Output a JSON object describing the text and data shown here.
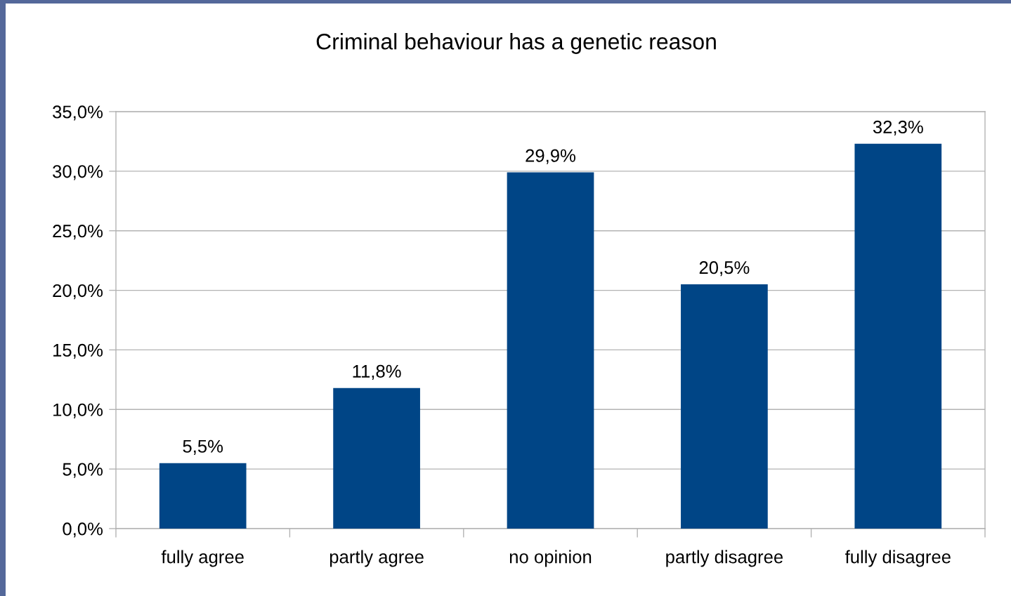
{
  "chart_data": {
    "type": "bar",
    "title": "Criminal behaviour has a genetic reason",
    "categories": [
      "fully agree",
      "partly agree",
      "no opinion",
      "partly disagree",
      "fully disagree"
    ],
    "values": [
      5.5,
      11.8,
      29.9,
      20.5,
      32.3
    ],
    "value_labels": [
      "5,5%",
      "11,8%",
      "29,9%",
      "20,5%",
      "32,3%"
    ],
    "color": "#004586",
    "ylim": [
      0,
      35
    ],
    "yticks": [
      {
        "value": 0,
        "label": "0,0%"
      },
      {
        "value": 5,
        "label": "5,0%"
      },
      {
        "value": 10,
        "label": "10,0%"
      },
      {
        "value": 15,
        "label": "15,0%"
      },
      {
        "value": 20,
        "label": "20,0%"
      },
      {
        "value": 25,
        "label": "25,0%"
      },
      {
        "value": 30,
        "label": "30,0%"
      },
      {
        "value": 35,
        "label": "35,0%"
      }
    ],
    "grid": "y"
  }
}
